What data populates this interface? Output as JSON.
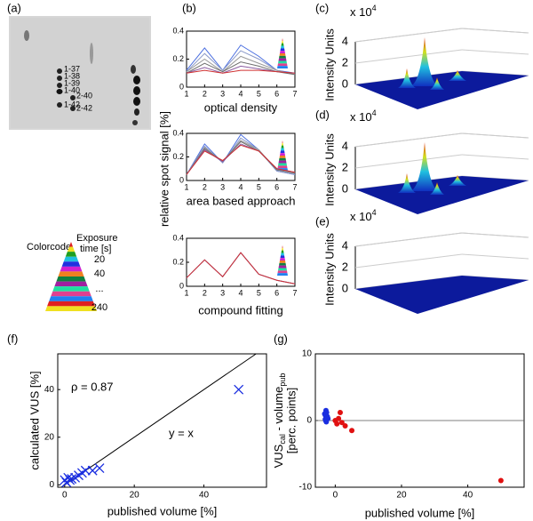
{
  "gel": {
    "panel": "(a)",
    "spots": [
      "1-37",
      "1-38",
      "1-39",
      "1-40",
      "1-42",
      "2-40",
      "2-42"
    ]
  },
  "colorcode": {
    "title": "Colorcode",
    "heading": "Exposure",
    "unit": "time [s]",
    "labels": [
      "20",
      "40",
      "...",
      "240"
    ]
  },
  "b_ylabel": "relative spot signal [%]",
  "chart_data": [
    {
      "type": "line",
      "panel": "(b)",
      "xlabel": "optical density",
      "xlim": [
        1,
        7
      ],
      "xticks": [
        1,
        2,
        3,
        4,
        5,
        6,
        7
      ],
      "x": [
        1,
        2,
        3,
        4,
        5,
        6,
        7
      ],
      "ylim": [
        0,
        0.4
      ],
      "yticks": [
        0,
        0.2,
        0.4
      ],
      "series": [
        {
          "color": "#4a6ee0",
          "values": [
            0.12,
            0.28,
            0.12,
            0.3,
            0.22,
            0.12,
            0.1
          ]
        },
        {
          "color": "#8a98c8",
          "values": [
            0.11,
            0.24,
            0.12,
            0.26,
            0.2,
            0.12,
            0.09
          ]
        },
        {
          "color": "#999999",
          "values": [
            0.11,
            0.2,
            0.11,
            0.22,
            0.17,
            0.12,
            0.09
          ]
        },
        {
          "color": "#6e6e6e",
          "values": [
            0.1,
            0.17,
            0.11,
            0.18,
            0.15,
            0.11,
            0.09
          ]
        },
        {
          "color": "#8a5aa0",
          "values": [
            0.1,
            0.14,
            0.1,
            0.15,
            0.13,
            0.11,
            0.1
          ]
        },
        {
          "color": "#d03030",
          "values": [
            0.1,
            0.12,
            0.1,
            0.12,
            0.12,
            0.11,
            0.1
          ]
        }
      ]
    },
    {
      "type": "line",
      "xlabel": "area based approach",
      "xlim": [
        1,
        7
      ],
      "xticks": [
        1,
        2,
        3,
        4,
        5,
        6,
        7
      ],
      "x": [
        1,
        2,
        3,
        4,
        5,
        6,
        7
      ],
      "ylim": [
        0,
        0.4
      ],
      "yticks": [
        0,
        0.2,
        0.4
      ],
      "series": [
        {
          "color": "#4a6ee0",
          "values": [
            0.05,
            0.31,
            0.15,
            0.39,
            0.26,
            0.08,
            0.05
          ]
        },
        {
          "color": "#8a98c8",
          "values": [
            0.05,
            0.29,
            0.15,
            0.36,
            0.26,
            0.08,
            0.05
          ]
        },
        {
          "color": "#999999",
          "values": [
            0.05,
            0.28,
            0.16,
            0.34,
            0.26,
            0.09,
            0.06
          ]
        },
        {
          "color": "#6e6e6e",
          "values": [
            0.05,
            0.27,
            0.16,
            0.33,
            0.25,
            0.09,
            0.06
          ]
        },
        {
          "color": "#8a5aa0",
          "values": [
            0.05,
            0.26,
            0.16,
            0.31,
            0.25,
            0.1,
            0.07
          ]
        },
        {
          "color": "#d03030",
          "values": [
            0.05,
            0.25,
            0.17,
            0.3,
            0.25,
            0.1,
            0.07
          ]
        }
      ]
    },
    {
      "type": "line",
      "xlabel": "compound fitting",
      "xlim": [
        1,
        7
      ],
      "xticks": [
        1,
        2,
        3,
        4,
        5,
        6,
        7
      ],
      "x": [
        1,
        2,
        3,
        4,
        5,
        6,
        7
      ],
      "ylim": [
        0,
        0.4
      ],
      "yticks": [
        0,
        0.2,
        0.4
      ],
      "series": [
        {
          "color": "#4a6ee0",
          "values": [
            0.07,
            0.22,
            0.08,
            0.28,
            0.1,
            0.05,
            0.02
          ]
        },
        {
          "color": "#8a5aa0",
          "values": [
            0.07,
            0.22,
            0.08,
            0.28,
            0.1,
            0.05,
            0.02
          ]
        },
        {
          "color": "#d03030",
          "values": [
            0.07,
            0.22,
            0.08,
            0.28,
            0.1,
            0.05,
            0.02
          ]
        }
      ]
    },
    {
      "type": "surface",
      "panel": "(c)",
      "zlabel": "Intensity Units",
      "multiplier": "x 10",
      "exponent": "4",
      "zlim": [
        0,
        4
      ],
      "zticks": [
        0,
        2,
        4
      ],
      "peaks": true
    },
    {
      "type": "surface",
      "panel": "(d)",
      "zlabel": "Intensity Units",
      "multiplier": "x 10",
      "exponent": "4",
      "zlim": [
        0,
        4
      ],
      "zticks": [
        0,
        2,
        4
      ],
      "peaks": true
    },
    {
      "type": "surface",
      "panel": "(e)",
      "zlabel": "Intensity Units",
      "multiplier": "x 10",
      "exponent": "4",
      "zlim": [
        0,
        4
      ],
      "zticks": [
        0,
        2,
        4
      ],
      "peaks": false
    },
    {
      "type": "scatter",
      "panel": "(f)",
      "xlabel": "published volume [%]",
      "ylabel": "calculated VUS [%]",
      "xlim": [
        -2,
        58
      ],
      "xticks": [
        0,
        20,
        40
      ],
      "ylim": [
        -1,
        55
      ],
      "yticks": [
        0,
        20,
        40
      ],
      "annotations": [
        "ρ = 0.87",
        "y = x"
      ],
      "identity_line": true,
      "series": [
        {
          "color": "#1a2ee0",
          "marker": "x",
          "x": [
            0,
            0.5,
            1,
            1.5,
            2,
            3,
            4,
            5,
            6,
            8,
            10,
            50
          ],
          "values": [
            2,
            1,
            3,
            2,
            2.5,
            3,
            4,
            5,
            6,
            6,
            7,
            40
          ]
        }
      ]
    },
    {
      "type": "scatter",
      "panel": "(g)",
      "xlabel": "published volume [%]",
      "ylabel": [
        "VUS",
        "cal",
        " - volume",
        "pub"
      ],
      "ylabel2": "[perc. points]",
      "xlim": [
        -6,
        57
      ],
      "xticks": [
        0,
        20,
        40
      ],
      "ylim": [
        -10,
        10
      ],
      "yticks": [
        -10,
        0,
        10
      ],
      "zero_line": true,
      "series": [
        {
          "color": "#1a2ee0",
          "marker": "o",
          "x": [
            -3,
            -3,
            -2.8,
            -2.5,
            -2.7,
            -2.2,
            -3.2,
            -2.9,
            -2.4,
            -2.6
          ],
          "values": [
            0.2,
            0.8,
            1.5,
            0.5,
            -0.2,
            0.3,
            1,
            0,
            0.6,
            1.2
          ]
        },
        {
          "color": "#e01010",
          "marker": "o",
          "x": [
            0,
            0.5,
            1,
            1.5,
            2,
            3,
            5,
            50
          ],
          "values": [
            0,
            -0.5,
            0.3,
            1.2,
            -0.3,
            -0.8,
            -1.5,
            -9
          ]
        }
      ]
    }
  ]
}
